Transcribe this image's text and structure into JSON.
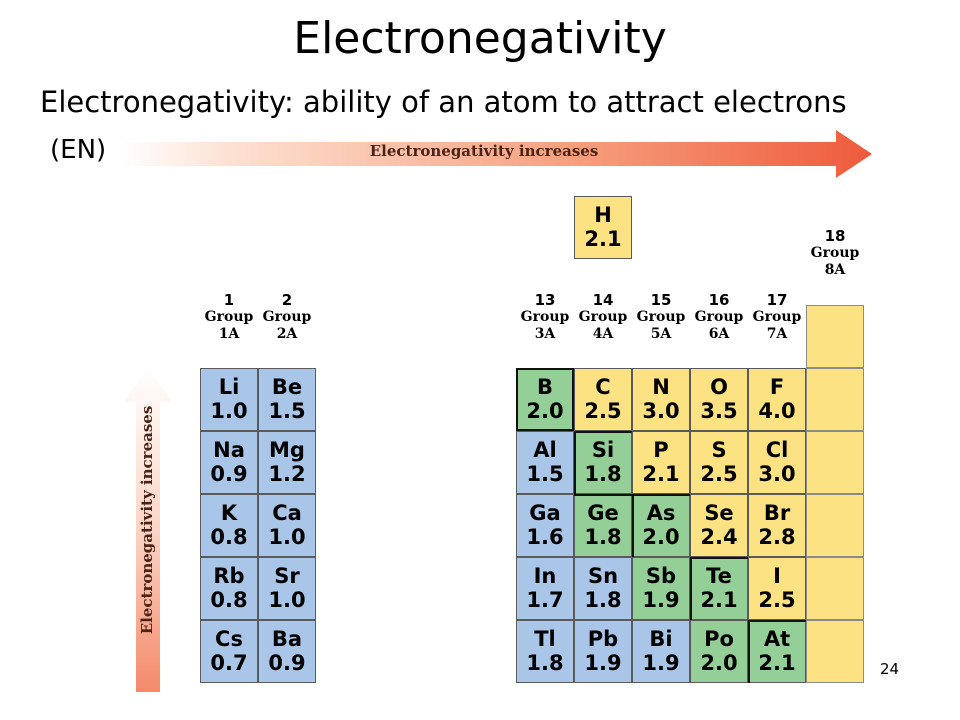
{
  "title": "Electronegativity",
  "subtitle": "Electronegativity: ability of an atom to attract electrons",
  "abbreviation": "(EN)",
  "horizontal_arrow_label": "Electronegativity increases",
  "vertical_arrow_label": "Electronegativity increases",
  "page_number": "24",
  "colors": {
    "blue": "#a9c6e8",
    "green": "#93cf96",
    "yellow": "#fde283",
    "arrow": "#ee5a3c"
  },
  "group_headers": [
    {
      "num": "1",
      "label": "Group",
      "sub": "1A"
    },
    {
      "num": "2",
      "label": "Group",
      "sub": "2A"
    },
    {
      "num": "13",
      "label": "Group",
      "sub": "3A"
    },
    {
      "num": "14",
      "label": "Group",
      "sub": "4A"
    },
    {
      "num": "15",
      "label": "Group",
      "sub": "5A"
    },
    {
      "num": "16",
      "label": "Group",
      "sub": "6A"
    },
    {
      "num": "17",
      "label": "Group",
      "sub": "7A"
    },
    {
      "num": "18",
      "label": "Group",
      "sub": "8A"
    }
  ],
  "elements": [
    {
      "symbol": "H",
      "en": "2.1",
      "color": "yellow"
    },
    {
      "symbol": "Li",
      "en": "1.0",
      "color": "blue"
    },
    {
      "symbol": "Be",
      "en": "1.5",
      "color": "blue"
    },
    {
      "symbol": "Na",
      "en": "0.9",
      "color": "blue"
    },
    {
      "symbol": "Mg",
      "en": "1.2",
      "color": "blue"
    },
    {
      "symbol": "K",
      "en": "0.8",
      "color": "blue"
    },
    {
      "symbol": "Ca",
      "en": "1.0",
      "color": "blue"
    },
    {
      "symbol": "Rb",
      "en": "0.8",
      "color": "blue"
    },
    {
      "symbol": "Sr",
      "en": "1.0",
      "color": "blue"
    },
    {
      "symbol": "Cs",
      "en": "0.7",
      "color": "blue"
    },
    {
      "symbol": "Ba",
      "en": "0.9",
      "color": "blue"
    },
    {
      "symbol": "B",
      "en": "2.0",
      "color": "green"
    },
    {
      "symbol": "C",
      "en": "2.5",
      "color": "yellow"
    },
    {
      "symbol": "N",
      "en": "3.0",
      "color": "yellow"
    },
    {
      "symbol": "O",
      "en": "3.5",
      "color": "yellow"
    },
    {
      "symbol": "F",
      "en": "4.0",
      "color": "yellow"
    },
    {
      "symbol": "Al",
      "en": "1.5",
      "color": "blue"
    },
    {
      "symbol": "Si",
      "en": "1.8",
      "color": "green"
    },
    {
      "symbol": "P",
      "en": "2.1",
      "color": "yellow"
    },
    {
      "symbol": "S",
      "en": "2.5",
      "color": "yellow"
    },
    {
      "symbol": "Cl",
      "en": "3.0",
      "color": "yellow"
    },
    {
      "symbol": "Ga",
      "en": "1.6",
      "color": "blue"
    },
    {
      "symbol": "Ge",
      "en": "1.8",
      "color": "green"
    },
    {
      "symbol": "As",
      "en": "2.0",
      "color": "green"
    },
    {
      "symbol": "Se",
      "en": "2.4",
      "color": "yellow"
    },
    {
      "symbol": "Br",
      "en": "2.8",
      "color": "yellow"
    },
    {
      "symbol": "In",
      "en": "1.7",
      "color": "blue"
    },
    {
      "symbol": "Sn",
      "en": "1.8",
      "color": "blue"
    },
    {
      "symbol": "Sb",
      "en": "1.9",
      "color": "green"
    },
    {
      "symbol": "Te",
      "en": "2.1",
      "color": "green"
    },
    {
      "symbol": "I",
      "en": "2.5",
      "color": "yellow"
    },
    {
      "symbol": "Tl",
      "en": "1.8",
      "color": "blue"
    },
    {
      "symbol": "Pb",
      "en": "1.9",
      "color": "blue"
    },
    {
      "symbol": "Bi",
      "en": "1.9",
      "color": "blue"
    },
    {
      "symbol": "Po",
      "en": "2.0",
      "color": "green"
    },
    {
      "symbol": "At",
      "en": "2.1",
      "color": "green"
    }
  ],
  "group18_empty_cells": 6
}
